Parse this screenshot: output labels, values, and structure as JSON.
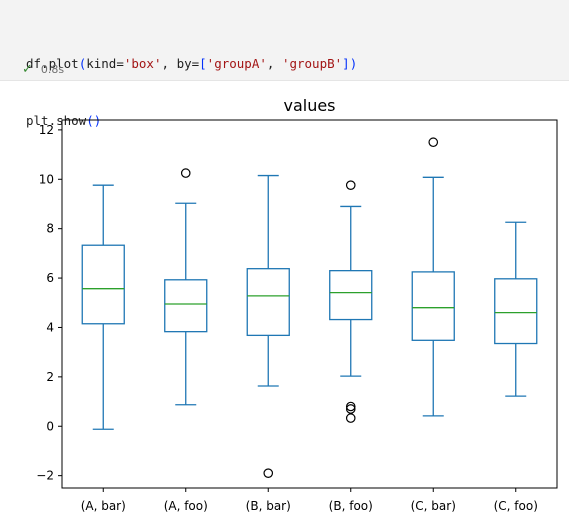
{
  "notebook": {
    "code_lines": [
      "df.plot(kind='box', by=['groupA', 'groupB'])",
      "plt.show()"
    ],
    "status": {
      "icon": "check-icon",
      "time": "0.8s"
    }
  },
  "chart_data": {
    "type": "box",
    "title": "values",
    "xlabel": "",
    "ylabel": "",
    "ylim": [
      -2.5,
      12.4
    ],
    "yticks": [
      -2,
      0,
      2,
      4,
      6,
      8,
      10,
      12
    ],
    "categories": [
      "(A, bar)",
      "(A, foo)",
      "(B, bar)",
      "(B, foo)",
      "(C, bar)",
      "(C, foo)"
    ],
    "boxes": [
      {
        "whisker_low": -0.12,
        "q1": 4.15,
        "median": 5.57,
        "q3": 7.33,
        "whisker_high": 9.76,
        "outliers": []
      },
      {
        "whisker_low": 0.87,
        "q1": 3.83,
        "median": 4.95,
        "q3": 5.93,
        "whisker_high": 9.03,
        "outliers": [
          10.25
        ]
      },
      {
        "whisker_low": 1.63,
        "q1": 3.68,
        "median": 5.28,
        "q3": 6.38,
        "whisker_high": 10.15,
        "outliers": [
          -1.9
        ]
      },
      {
        "whisker_low": 2.03,
        "q1": 4.32,
        "median": 5.41,
        "q3": 6.3,
        "whisker_high": 8.9,
        "outliers": [
          9.76,
          0.8,
          0.7,
          0.33
        ]
      },
      {
        "whisker_low": 0.42,
        "q1": 3.48,
        "median": 4.8,
        "q3": 6.25,
        "whisker_high": 10.08,
        "outliers": [
          11.5
        ]
      },
      {
        "whisker_low": 1.22,
        "q1": 3.35,
        "median": 4.6,
        "q3": 5.97,
        "whisker_high": 8.26,
        "outliers": []
      }
    ],
    "colors": {
      "box": "#1f77b4",
      "median": "#2ca02c",
      "flier": "#000000"
    },
    "grid": false
  }
}
